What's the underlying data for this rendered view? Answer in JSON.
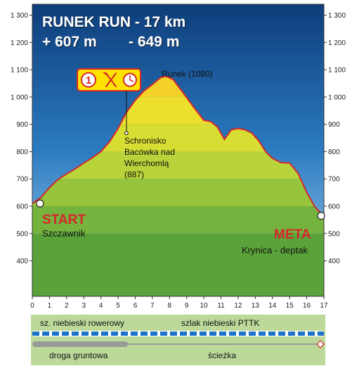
{
  "chart_data": {
    "type": "area",
    "title": "RUNEK RUN - 17 km",
    "subtitle_gain": "+ 607 m",
    "subtitle_loss": "- 649 m",
    "xlabel": "",
    "ylabel": "",
    "xlim": [
      0,
      17
    ],
    "ylim": [
      270,
      1340
    ],
    "x_ticks": [
      0,
      1,
      2,
      3,
      4,
      5,
      6,
      7,
      8,
      9,
      10,
      11,
      12,
      13,
      14,
      15,
      16,
      17
    ],
    "y_ticks": [
      400,
      500,
      600,
      700,
      800,
      900,
      1000,
      1100,
      1200,
      1300
    ],
    "y_tick_labels": [
      "400",
      "500",
      "600",
      "700",
      "800",
      "900",
      "1 000",
      "1 100",
      "1 200",
      "1 300"
    ],
    "series": [
      {
        "x": [
          0,
          0.5,
          1.0,
          1.5,
          2.0,
          2.5,
          3.0,
          3.5,
          4.0,
          4.5,
          5.0,
          5.5,
          6.0,
          6.5,
          7.0,
          7.5,
          7.8,
          8.2,
          8.6,
          9.0,
          9.5,
          10.0,
          10.4,
          10.8,
          11.2,
          11.6,
          12.0,
          12.4,
          12.8,
          13.2,
          13.6,
          14.0,
          14.5,
          15.0,
          15.5,
          16.0,
          16.5,
          17.0
        ],
        "y": [
          610,
          632,
          668,
          698,
          718,
          737,
          758,
          778,
          800,
          836,
          885,
          945,
          988,
          1022,
          1046,
          1072,
          1076,
          1065,
          1032,
          998,
          955,
          915,
          910,
          890,
          845,
          880,
          885,
          880,
          868,
          840,
          800,
          775,
          760,
          758,
          720,
          650,
          595,
          565
        ]
      }
    ],
    "start_marker": {
      "x": 0.2,
      "y": 610
    },
    "end_marker": {
      "x": 17.0,
      "y": 565
    },
    "annotations": {
      "peak": "Runek (1080)",
      "shelter_lines": [
        "Schronisko",
        "Bacówka nad",
        "Wierchomlą",
        "(887)"
      ],
      "checkpoint_number": "1",
      "start_label": "START",
      "start_place": "Szczawnik",
      "finish_label": "META",
      "finish_place": "Krynica - deptak"
    },
    "trail_labels": {
      "bike_trail": "sz. niebieski rowerowy",
      "pttk_trail": "szlak niebieski PTTK",
      "dirt_road": "droga gruntowa",
      "path": "ścieżka"
    },
    "grid": false,
    "legend": "none"
  }
}
